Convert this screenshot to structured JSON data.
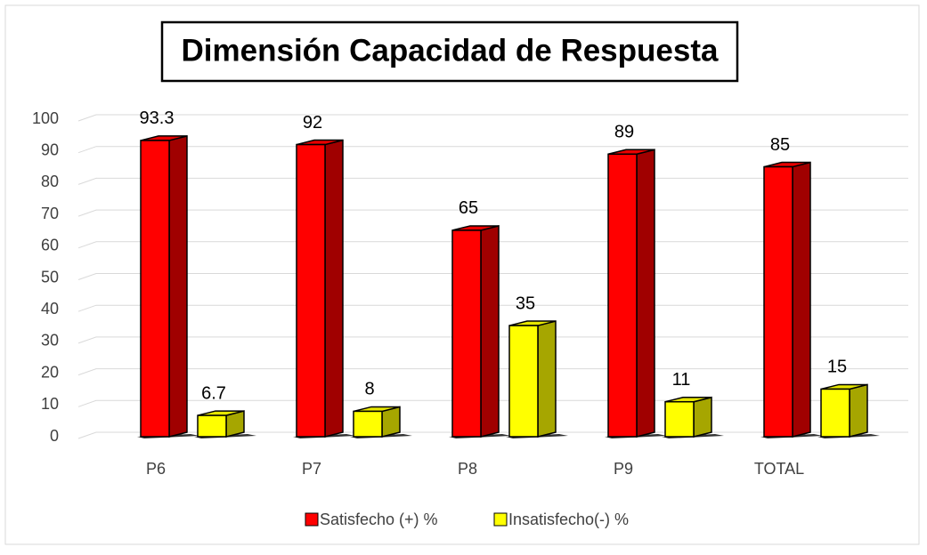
{
  "chart_data": {
    "type": "bar3d",
    "title": "Dimensión Capacidad de Respuesta",
    "categories": [
      "P6",
      "P7",
      "P8",
      "P9",
      "TOTAL"
    ],
    "series": [
      {
        "name": "Satisfecho (+) %",
        "color": "#ff0000",
        "side": "#a00000",
        "top": "#e80000",
        "values": [
          93.3,
          92,
          65,
          89,
          85
        ]
      },
      {
        "name": "Insatisfecho(-) %",
        "color": "#ffff00",
        "side": "#a6a600",
        "top": "#e6e600",
        "values": [
          6.7,
          8,
          35,
          11,
          15
        ]
      }
    ],
    "ylim": [
      0,
      100
    ],
    "yticks": [
      0,
      10,
      20,
      30,
      40,
      50,
      60,
      70,
      80,
      90,
      100
    ],
    "grid": true,
    "legend": "bottom"
  }
}
